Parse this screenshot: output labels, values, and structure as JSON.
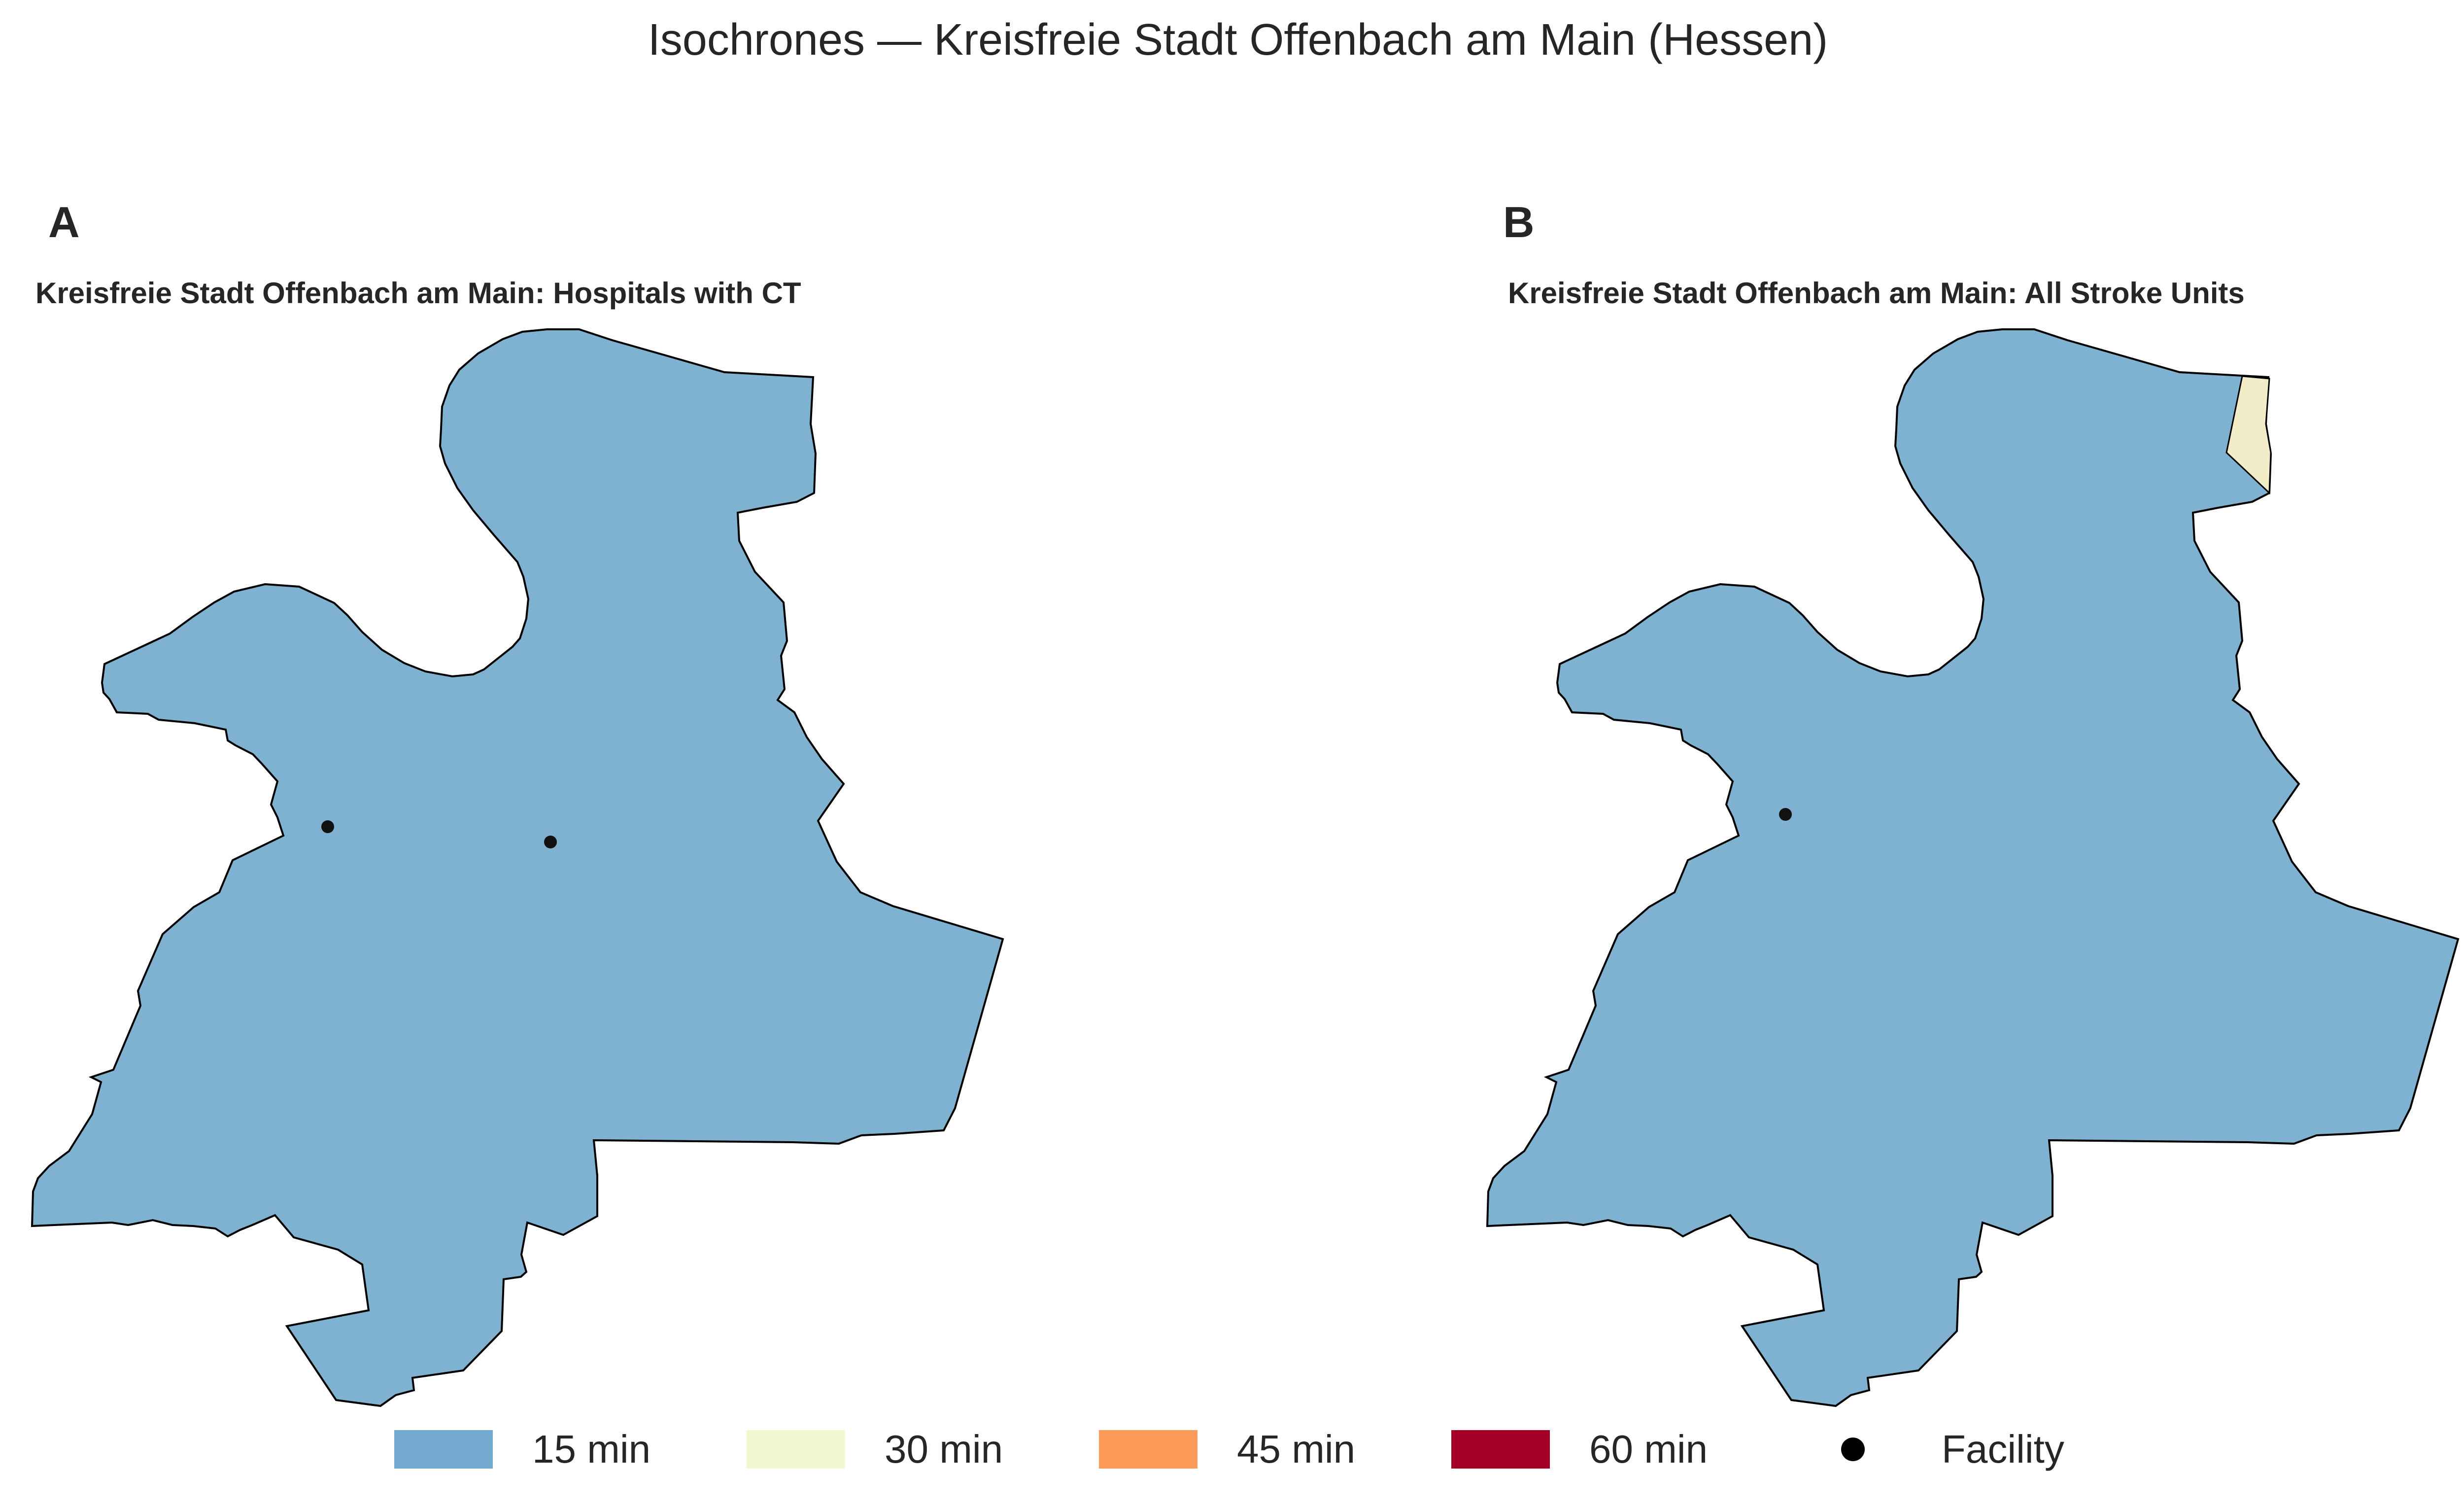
{
  "figure": {
    "title": "Isochrones — Kreisfreie Stadt Offenbach am Main (Hessen)"
  },
  "panels": [
    {
      "letter": "A",
      "title": "Kreisfreie Stadt Offenbach am Main: Hospitals with CT",
      "facility_count": 2,
      "zones_present": [
        "15 min"
      ]
    },
    {
      "letter": "B",
      "title": "Kreisfreie Stadt Offenbach am Main: All Stroke Units",
      "facility_count": 1,
      "zones_present": [
        "15 min",
        "30 min"
      ]
    }
  ],
  "legend": {
    "items": [
      {
        "label": "15 min",
        "color": "#74a9cf"
      },
      {
        "label": "30 min",
        "color": "#f2f7d0"
      },
      {
        "label": "45 min",
        "color": "#fc9a5a"
      },
      {
        "label": "60 min",
        "color": "#a50026"
      },
      {
        "label": "Facility",
        "color": "#000000",
        "marker": "dot"
      }
    ]
  },
  "colors": {
    "zone_15_fill": "#7fb1d0",
    "zone_30_fill": "#f2edc8",
    "boundary": "#000000"
  }
}
